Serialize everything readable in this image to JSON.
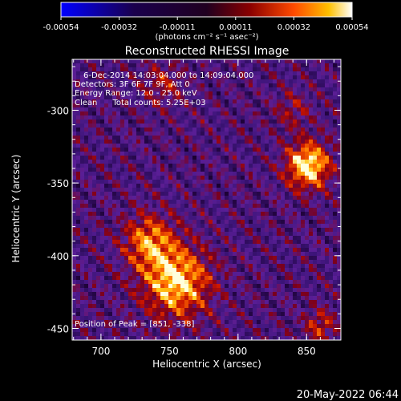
{
  "chart_data": {
    "type": "heatmap",
    "title": "Reconstructed RHESSI Image",
    "xlabel": "Heliocentric X (arcsec)",
    "ylabel": "Heliocentric Y (arcsec)",
    "xlim": [
      679,
      875
    ],
    "ylim": [
      -458,
      -265
    ],
    "x_ticks": [
      700,
      750,
      800,
      850
    ],
    "y_ticks": [
      -300,
      -350,
      -400,
      -450
    ],
    "colorbar": {
      "ticks": [
        "-0.00054",
        "-0.00032",
        "-0.00011",
        "0.00011",
        "0.00032",
        "0.00054"
      ],
      "unit_label": "(photons cm⁻² s⁻¹ asec⁻²)"
    },
    "info_lines": [
      "6-Dec-2014 14:03:04.000 to 14:09:04.000",
      "Detectors: 3F 6F 7F 9F, Att 0",
      "Energy Range: 12.0 - 25.0 keV",
      "Clean      Total counts: 5.25E+03"
    ],
    "peak_text": "Position of Peak = [851, -338]",
    "timestamp": "20-May-2022 06:44",
    "sources": [
      {
        "x": 851,
        "y": -338,
        "sigma": 11,
        "amp": 1.0
      },
      {
        "x": 755,
        "y": -418,
        "sigma": 17,
        "amp": 0.9
      },
      {
        "x": 735,
        "y": -390,
        "sigma": 13,
        "amp": 0.65
      },
      {
        "x": 745,
        "y": -282,
        "sigma": 10,
        "amp": 0.35
      },
      {
        "x": 840,
        "y": -300,
        "sigma": 9,
        "amp": 0.3
      },
      {
        "x": 860,
        "y": -448,
        "sigma": 8,
        "amp": 0.45
      }
    ]
  }
}
